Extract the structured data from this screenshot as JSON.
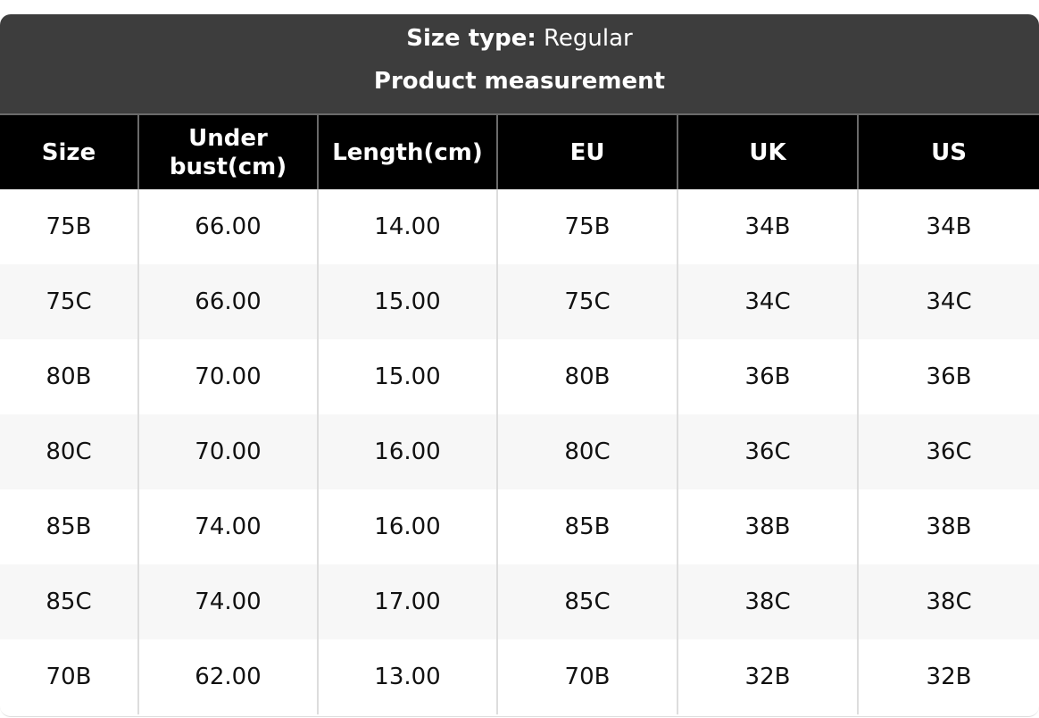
{
  "header": {
    "size_type_label": "Size type:",
    "size_type_value": "Regular",
    "title": "Product measurement"
  },
  "table": {
    "columns": [
      "Size",
      "Under bust(cm)",
      "Length(cm)",
      "EU",
      "UK",
      "US"
    ],
    "rows": [
      [
        "75B",
        "66.00",
        "14.00",
        "75B",
        "34B",
        "34B"
      ],
      [
        "75C",
        "66.00",
        "15.00",
        "75C",
        "34C",
        "34C"
      ],
      [
        "80B",
        "70.00",
        "15.00",
        "80B",
        "36B",
        "36B"
      ],
      [
        "80C",
        "70.00",
        "16.00",
        "80C",
        "36C",
        "36C"
      ],
      [
        "85B",
        "74.00",
        "16.00",
        "85B",
        "38B",
        "38B"
      ],
      [
        "85C",
        "74.00",
        "17.00",
        "85C",
        "38C",
        "38C"
      ],
      [
        "70B",
        "62.00",
        "13.00",
        "70B",
        "32B",
        "32B"
      ]
    ]
  },
  "colors": {
    "header_bg": "#3d3d3d",
    "column_header_bg": "#000000",
    "alt_row_bg": "#f7f7f7"
  }
}
